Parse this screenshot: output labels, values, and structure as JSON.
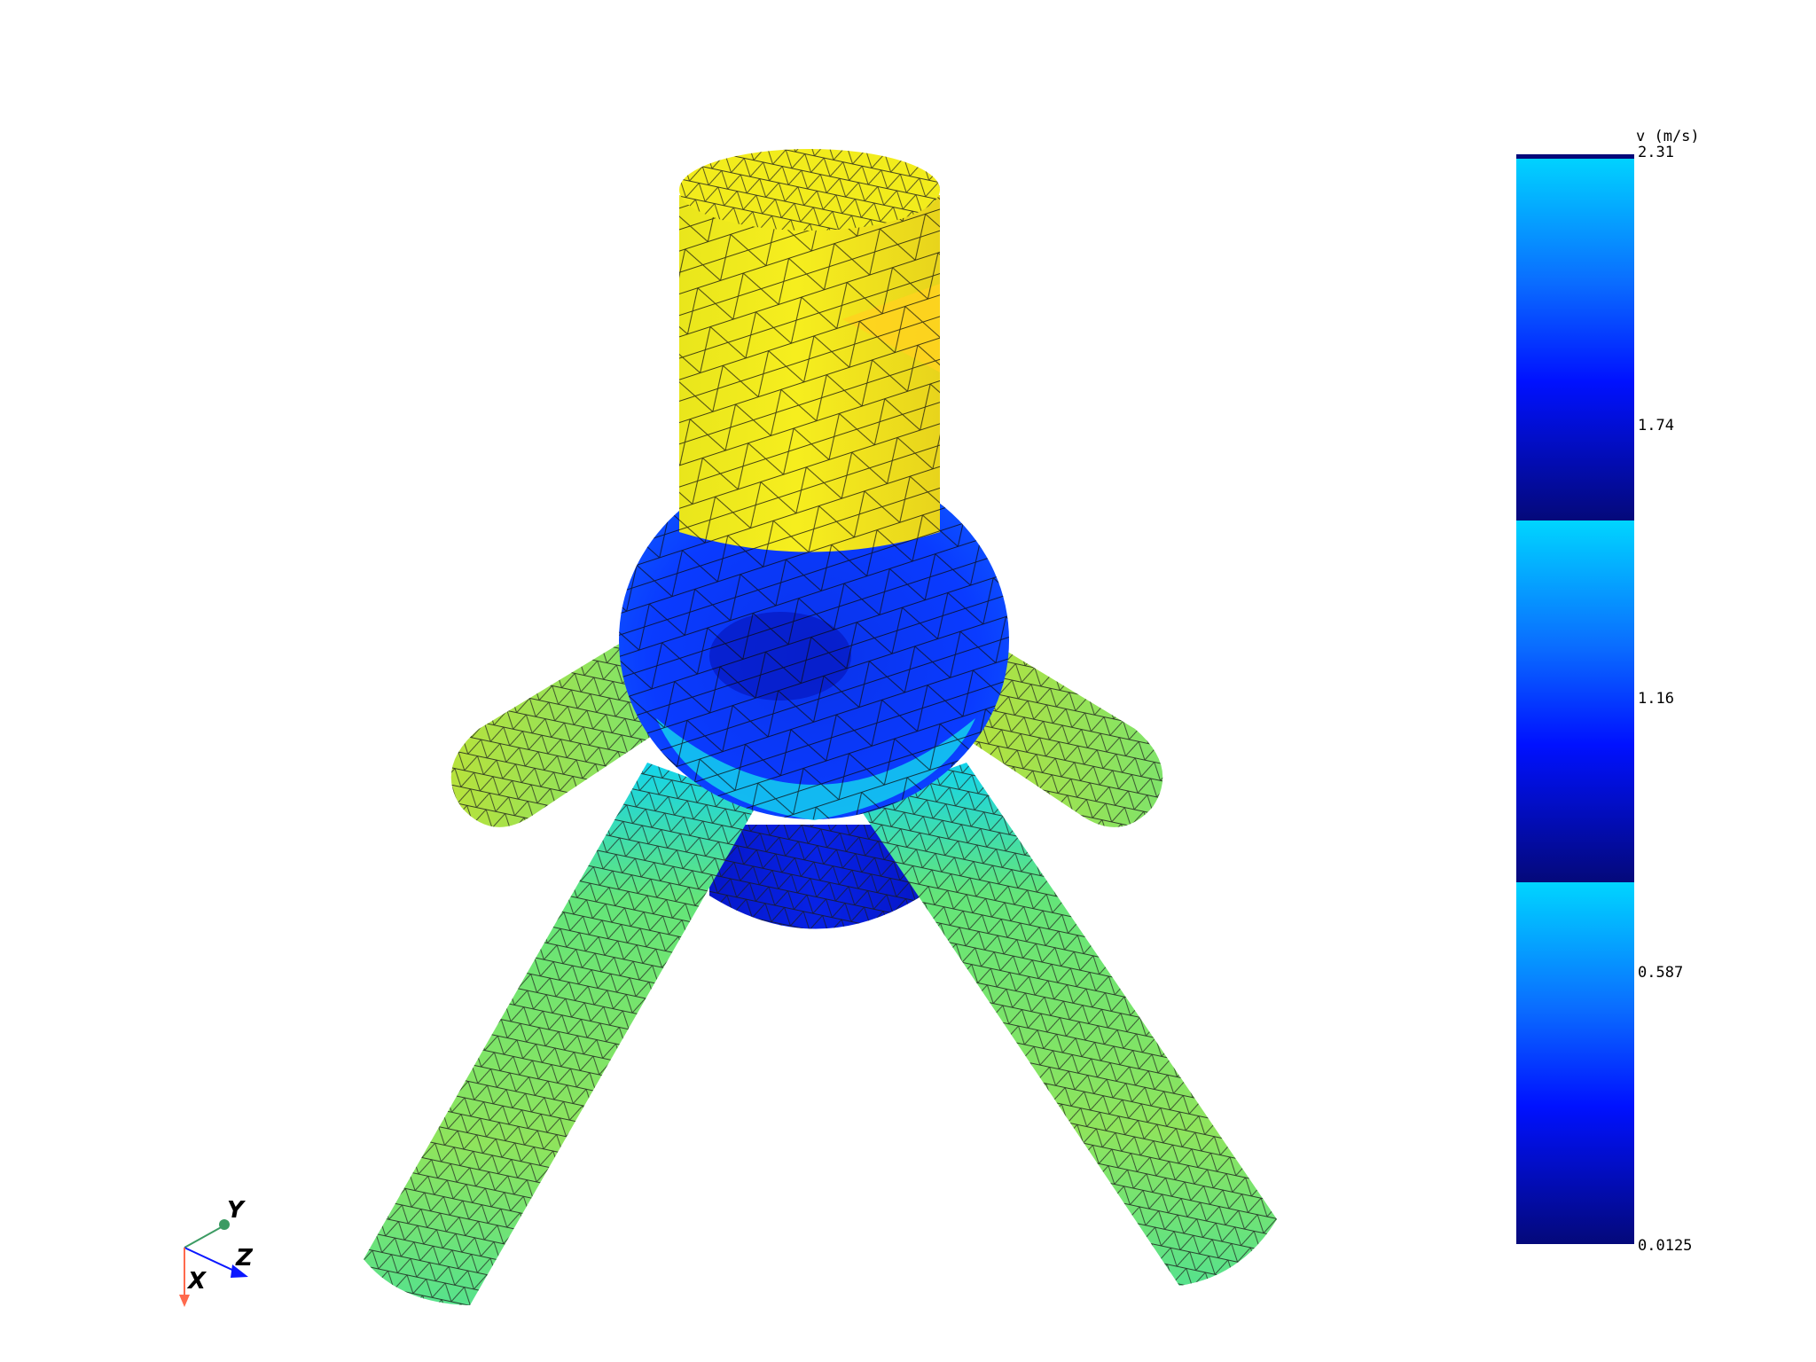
{
  "colorbar": {
    "title": "v (m/s)",
    "ticks": [
      "2.31",
      "1.74",
      "1.16",
      "0.587",
      "0.0125"
    ],
    "min": 0.0125,
    "max": 2.31,
    "bands": 3,
    "colors": {
      "light": "#00d5ff",
      "mid": "#0a6cff",
      "bright": "#0011ff",
      "dark": "#04097a"
    }
  },
  "axes": {
    "x": "X",
    "y": "Y",
    "z": "Z",
    "colors": {
      "x": "#ff6a4d",
      "y": "#3c9b63",
      "z": "#0b18ff"
    }
  },
  "mesh": {
    "colors": {
      "yellow": "#f2ec1c",
      "orange": "#ffd21f",
      "sphere": "#0a3bff",
      "sphere_dark": "#0512b8",
      "cyan": "#13d4ec",
      "green": "#79e46a",
      "lime": "#b7e23c",
      "base": "#0722e6"
    }
  }
}
